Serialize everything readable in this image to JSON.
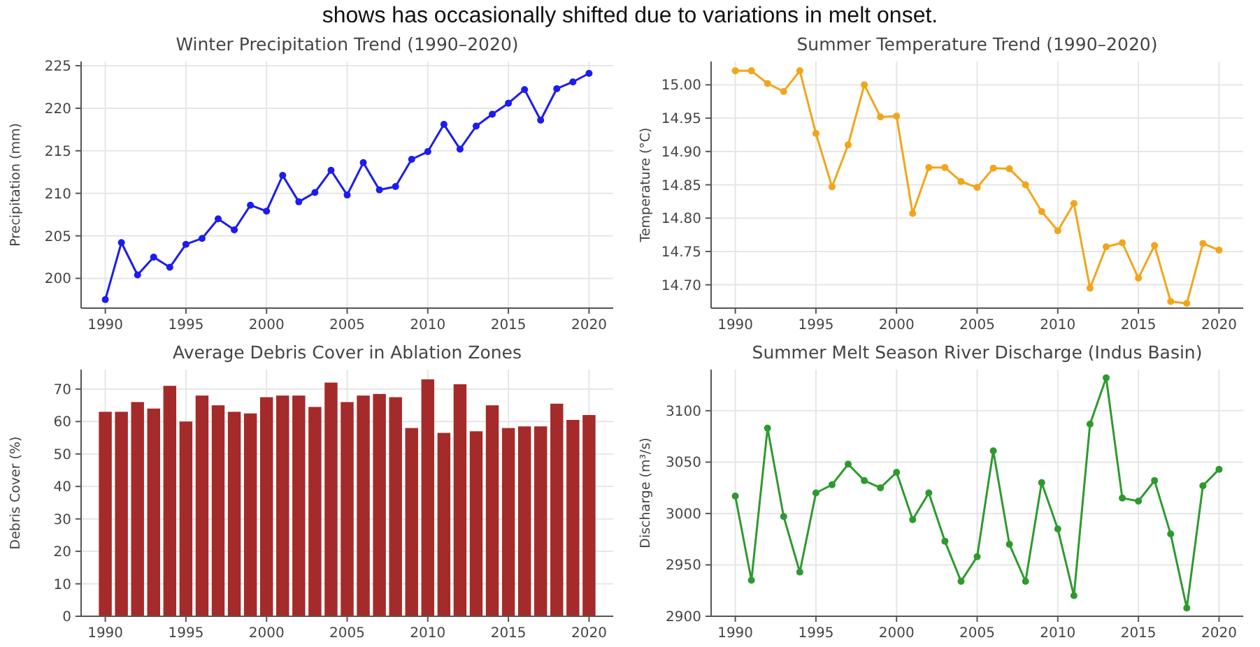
{
  "chart_data": [
    {
      "type": "line",
      "title": "Winter Precipitation Trend (1990–2020)",
      "ylabel": "Precipitation (mm)",
      "annotations": [
        "shows has occasionally shifted due to variations in melt onset."
      ],
      "x": [
        1990,
        1991,
        1992,
        1993,
        1994,
        1995,
        1996,
        1997,
        1998,
        1999,
        2000,
        2001,
        2002,
        2003,
        2004,
        2005,
        2006,
        2007,
        2008,
        2009,
        2010,
        2011,
        2012,
        2013,
        2014,
        2015,
        2016,
        2017,
        2018,
        2019,
        2020
      ],
      "series": [
        {
          "color": "#1c1cf0",
          "values": [
            197.5,
            204.2,
            200.4,
            202.5,
            201.3,
            204.0,
            204.7,
            207.0,
            205.7,
            208.6,
            207.9,
            212.1,
            209.0,
            210.1,
            212.7,
            209.8,
            213.6,
            210.4,
            210.8,
            214.0,
            214.9,
            218.1,
            215.2,
            217.9,
            219.3,
            220.6,
            222.2,
            218.6,
            222.3,
            223.1,
            224.1
          ]
        }
      ],
      "xlim": [
        1988.5,
        2021.5
      ],
      "xticks": [
        1990,
        1995,
        2000,
        2005,
        2010,
        2015,
        2020
      ],
      "ylim": [
        196.5,
        225.5
      ],
      "yticks": [
        200,
        205,
        210,
        215,
        220,
        225
      ],
      "grid": true,
      "marker": "circle",
      "line_style": "solid"
    },
    {
      "type": "line",
      "title": "Summer Temperature Trend (1990–2020)",
      "ylabel": "Temperature (°C)",
      "x": [
        1990,
        1991,
        1992,
        1993,
        1994,
        1995,
        1996,
        1997,
        1998,
        1999,
        2000,
        2001,
        2002,
        2003,
        2004,
        2005,
        2006,
        2007,
        2008,
        2009,
        2010,
        2011,
        2012,
        2013,
        2014,
        2015,
        2016,
        2017,
        2018,
        2019,
        2020
      ],
      "series": [
        {
          "color": "#f2a51a",
          "values": [
            15.021,
            15.021,
            15.002,
            14.99,
            15.021,
            14.927,
            14.847,
            14.91,
            15.0,
            14.952,
            14.953,
            14.807,
            14.876,
            14.876,
            14.855,
            14.846,
            14.875,
            14.874,
            14.85,
            14.81,
            14.781,
            14.822,
            14.695,
            14.757,
            14.763,
            14.71,
            14.759,
            14.675,
            14.672,
            14.762,
            14.752
          ]
        }
      ],
      "xlim": [
        1988.5,
        2021.5
      ],
      "xticks": [
        1990,
        1995,
        2000,
        2005,
        2010,
        2015,
        2020
      ],
      "ylim": [
        14.665,
        15.035
      ],
      "yticks": [
        {
          "value": 14.7,
          "label": "14.70"
        },
        {
          "value": 14.75,
          "label": "14.75"
        },
        {
          "value": 14.8,
          "label": "14.80"
        },
        {
          "value": 14.85,
          "label": "14.85"
        },
        {
          "value": 14.9,
          "label": "14.90"
        },
        {
          "value": 14.95,
          "label": "14.95"
        },
        {
          "value": 15.0,
          "label": "15.00"
        }
      ],
      "grid": true,
      "marker": "circle",
      "line_style": "solid"
    },
    {
      "type": "bar",
      "title": "Average Debris Cover in Ablation Zones",
      "ylabel": "Debris Cover (%)",
      "x": [
        1990,
        1991,
        1992,
        1993,
        1994,
        1995,
        1996,
        1997,
        1998,
        1999,
        2000,
        2001,
        2002,
        2003,
        2004,
        2005,
        2006,
        2007,
        2008,
        2009,
        2010,
        2011,
        2012,
        2013,
        2014,
        2015,
        2016,
        2017,
        2018,
        2019,
        2020
      ],
      "series": [
        {
          "color": "#a52a2a",
          "values": [
            63,
            63,
            66,
            64,
            71,
            60,
            68,
            65,
            63,
            62.5,
            67.5,
            68,
            68,
            64.5,
            72,
            66,
            68,
            68.5,
            67.5,
            58,
            73,
            56.5,
            71.5,
            57,
            65,
            58,
            58.5,
            58.5,
            65.5,
            60.5,
            62
          ]
        }
      ],
      "xlim": [
        1988.5,
        2021.5
      ],
      "xticks": [
        1990,
        1995,
        2000,
        2005,
        2010,
        2015,
        2020
      ],
      "ylim": [
        0,
        76
      ],
      "yticks": [
        0,
        10,
        20,
        30,
        40,
        50,
        60,
        70
      ],
      "grid": true
    },
    {
      "type": "line",
      "title": "Summer Melt Season River Discharge (Indus Basin)",
      "ylabel": "Discharge (m³/s)",
      "x": [
        1990,
        1991,
        1992,
        1993,
        1994,
        1995,
        1996,
        1997,
        1998,
        1999,
        2000,
        2001,
        2002,
        2003,
        2004,
        2005,
        2006,
        2007,
        2008,
        2009,
        2010,
        2011,
        2012,
        2013,
        2014,
        2015,
        2016,
        2017,
        2018,
        2019,
        2020
      ],
      "series": [
        {
          "color": "#2e9a2e",
          "values": [
            3017,
            2935,
            3083,
            2997,
            2943,
            3020,
            3028,
            3048,
            3032,
            3025,
            3040,
            2994,
            3020,
            2973,
            2934,
            2958,
            3061,
            2970,
            2934,
            3030,
            2985,
            2920,
            3087,
            3132,
            3015,
            3012,
            3032,
            2980,
            2908,
            3027,
            3043
          ]
        }
      ],
      "xlim": [
        1988.5,
        2021.5
      ],
      "xticks": [
        1990,
        1995,
        2000,
        2005,
        2010,
        2015,
        2020
      ],
      "ylim": [
        2900,
        3140
      ],
      "yticks": [
        2900,
        2950,
        3000,
        3050,
        3100
      ],
      "grid": true,
      "marker": "circle",
      "line_style": "solid"
    }
  ]
}
